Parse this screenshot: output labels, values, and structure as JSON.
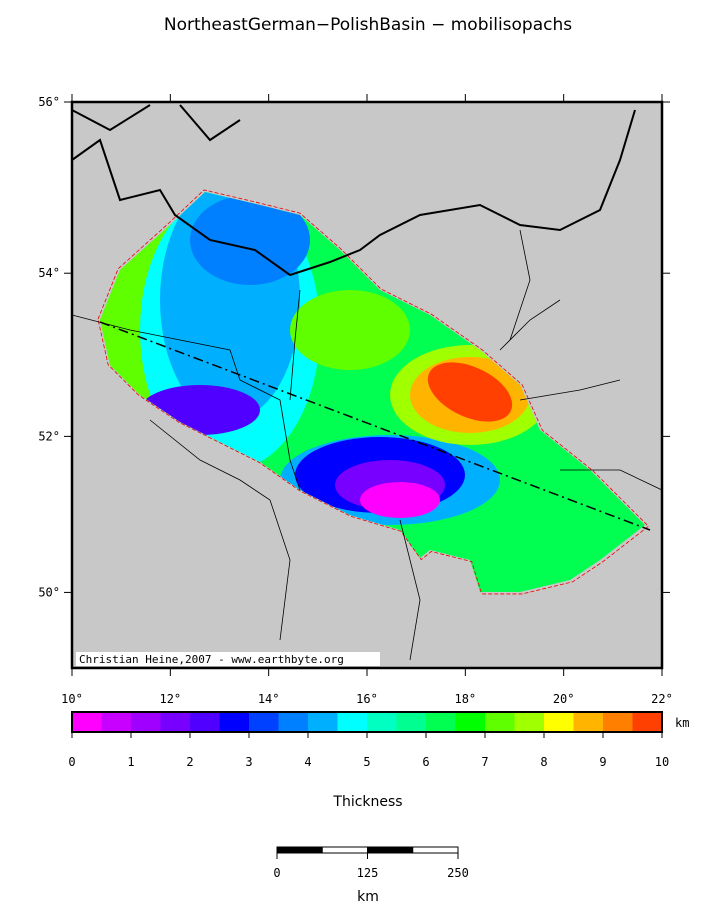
{
  "title": "NortheastGerman−PolishBasin − mobilisopachs",
  "map": {
    "xlim": [
      10,
      22
    ],
    "ylim": [
      49,
      56
    ],
    "xticks": [
      {
        "value": 10,
        "label": "10°"
      },
      {
        "value": 12,
        "label": "12°"
      },
      {
        "value": 14,
        "label": "14°"
      },
      {
        "value": 16,
        "label": "16°"
      },
      {
        "value": 18,
        "label": "18°"
      },
      {
        "value": 20,
        "label": "20°"
      },
      {
        "value": 22,
        "label": "22°"
      }
    ],
    "yticks": [
      {
        "value": 50,
        "label": "50°"
      },
      {
        "value": 52,
        "label": "52°"
      },
      {
        "value": 54,
        "label": "54°"
      },
      {
        "value": 56,
        "label": "56°"
      }
    ],
    "credit": "Christian Heine,2007 - www.earthbyte.org"
  },
  "colorbar": {
    "lim": [
      0,
      10
    ],
    "ticks": [
      0,
      1,
      2,
      3,
      4,
      5,
      6,
      7,
      8,
      9,
      10
    ],
    "unit": "km",
    "label": "Thickness",
    "colors": [
      "#ff00ff",
      "#c800ff",
      "#a000ff",
      "#7800ff",
      "#5000ff",
      "#0000ff",
      "#0040ff",
      "#0080ff",
      "#00b0ff",
      "#00ffff",
      "#00ffc0",
      "#00ff90",
      "#00ff50",
      "#00ff00",
      "#60ff00",
      "#a0ff00",
      "#ffff00",
      "#ffb400",
      "#ff8000",
      "#ff4000"
    ]
  },
  "scalebar": {
    "lim": [
      0,
      250
    ],
    "ticks": [
      0,
      125,
      250
    ],
    "unit": "km"
  }
}
